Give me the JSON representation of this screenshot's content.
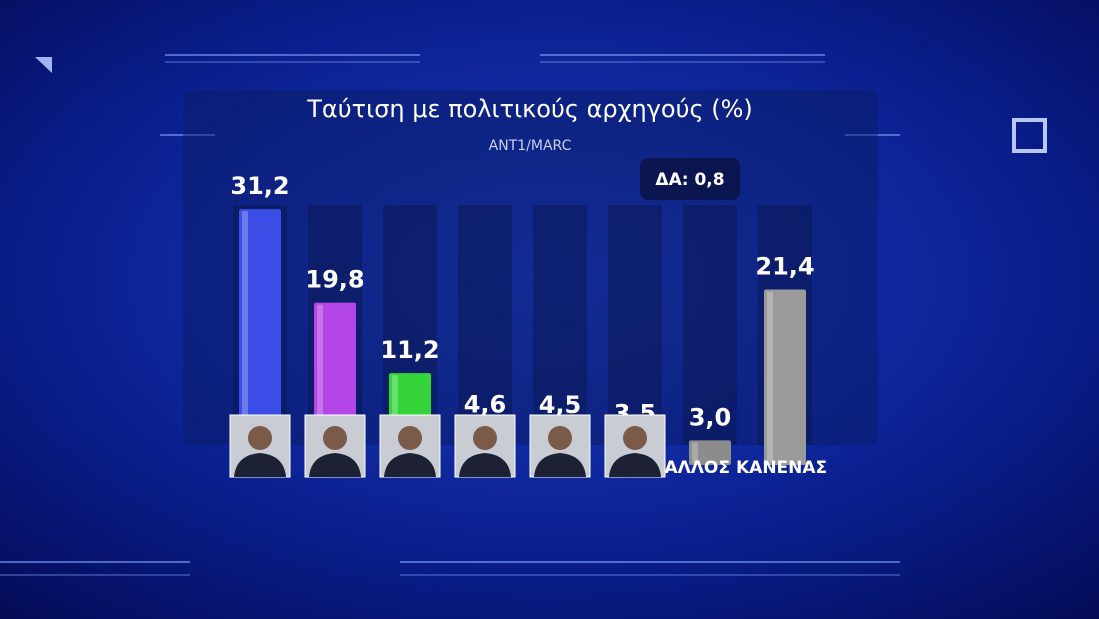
{
  "chart_data": {
    "type": "bar",
    "title": "Ταύτιση με πολιτικούς αρχηγούς (%)",
    "subtitle": "ANT1/MARC",
    "annotation": "ΔΑ: 0,8",
    "categories": [
      null,
      null,
      null,
      null,
      null,
      null,
      "ΑΛΛΟΣ",
      "ΚΑΝΕΝΑΣ"
    ],
    "values": [
      31.2,
      19.8,
      11.2,
      4.6,
      4.5,
      3.5,
      3.0,
      21.4
    ],
    "value_labels": [
      "31,2",
      "19,8",
      "11,2",
      "4,6",
      "4,5",
      "3,5",
      "3,0",
      "21,4"
    ],
    "colors": [
      "#3b4fe6",
      "#b445e6",
      "#35d43a",
      "#f2531f",
      "#36c3ea",
      "#f2792e",
      "#8c8c8c",
      "#9a9a9a"
    ]
  }
}
